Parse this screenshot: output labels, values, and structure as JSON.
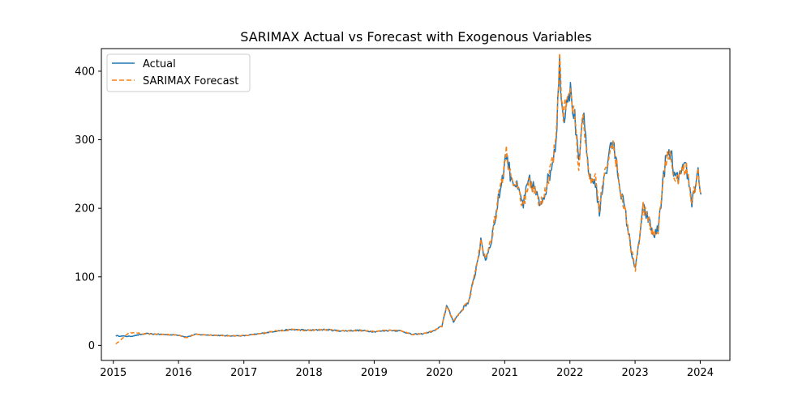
{
  "chart_data": {
    "type": "line",
    "title": "SARIMAX Actual vs Forecast with Exogenous Variables",
    "xlabel": "",
    "ylabel": "",
    "xlim": [
      "2014-10-26",
      "2024-06-15"
    ],
    "ylim": [
      -22,
      433
    ],
    "x_ticks": [
      "2015",
      "2016",
      "2017",
      "2018",
      "2019",
      "2020",
      "2021",
      "2022",
      "2023",
      "2024"
    ],
    "y_ticks": [
      0,
      100,
      200,
      300,
      400
    ],
    "grid": false,
    "legend_position": "top-left",
    "x": [
      "2015-01-15",
      "2015-04-01",
      "2015-07-01",
      "2015-10-01",
      "2016-01-01",
      "2016-02-15",
      "2016-04-01",
      "2016-07-01",
      "2016-10-01",
      "2017-01-01",
      "2017-04-01",
      "2017-07-01",
      "2017-10-01",
      "2018-01-01",
      "2018-04-01",
      "2018-07-01",
      "2018-10-01",
      "2019-01-01",
      "2019-04-01",
      "2019-06-01",
      "2019-08-01",
      "2019-10-01",
      "2019-12-01",
      "2020-01-15",
      "2020-02-10",
      "2020-03-20",
      "2020-05-01",
      "2020-06-15",
      "2020-07-15",
      "2020-08-20",
      "2020-09-15",
      "2020-10-15",
      "2020-11-15",
      "2021-01-10",
      "2021-02-01",
      "2021-03-10",
      "2021-04-15",
      "2021-05-15",
      "2021-06-15",
      "2021-07-15",
      "2021-08-15",
      "2021-09-15",
      "2021-10-15",
      "2021-11-04",
      "2021-11-25",
      "2021-12-20",
      "2022-01-04",
      "2022-01-28",
      "2022-02-20",
      "2022-03-15",
      "2022-04-05",
      "2022-04-25",
      "2022-05-24",
      "2022-06-15",
      "2022-07-10",
      "2022-08-01",
      "2022-08-16",
      "2022-09-10",
      "2022-10-10",
      "2022-11-10",
      "2022-12-10",
      "2023-01-03",
      "2023-02-15",
      "2023-03-15",
      "2023-04-15",
      "2023-05-10",
      "2023-06-20",
      "2023-07-20",
      "2023-08-15",
      "2023-09-15",
      "2023-10-15",
      "2023-11-15",
      "2023-12-20",
      "2024-01-05"
    ],
    "series": [
      {
        "name": "Actual",
        "color": "#1f77b4",
        "style": "solid",
        "values": [
          14,
          13,
          17,
          16,
          15,
          12,
          16,
          15,
          14,
          14,
          17,
          21,
          23,
          22,
          23,
          21,
          22,
          20,
          22,
          21,
          16,
          17,
          21,
          28,
          58,
          35,
          50,
          65,
          100,
          150,
          125,
          150,
          195,
          280,
          250,
          230,
          205,
          240,
          230,
          205,
          225,
          255,
          300,
          410,
          330,
          370,
          370,
          330,
          260,
          340,
          280,
          240,
          240,
          190,
          250,
          260,
          300,
          280,
          230,
          190,
          140,
          110,
          200,
          185,
          160,
          170,
          270,
          280,
          240,
          250,
          260,
          210,
          255,
          220
        ]
      },
      {
        "name": "SARIMAX Forecast",
        "color": "#ff7f0e",
        "style": "dashed",
        "values": [
          2,
          19,
          17,
          16,
          15,
          11,
          16,
          15,
          14,
          14,
          17,
          21,
          23,
          22,
          23,
          21,
          22,
          20,
          22,
          21,
          16,
          17,
          21,
          28,
          58,
          35,
          50,
          65,
          100,
          150,
          125,
          150,
          195,
          280,
          250,
          230,
          205,
          240,
          230,
          205,
          225,
          255,
          300,
          410,
          330,
          370,
          370,
          330,
          260,
          340,
          280,
          240,
          240,
          190,
          250,
          260,
          300,
          280,
          230,
          190,
          140,
          110,
          200,
          185,
          160,
          170,
          270,
          280,
          240,
          250,
          260,
          210,
          255,
          220
        ]
      }
    ]
  }
}
